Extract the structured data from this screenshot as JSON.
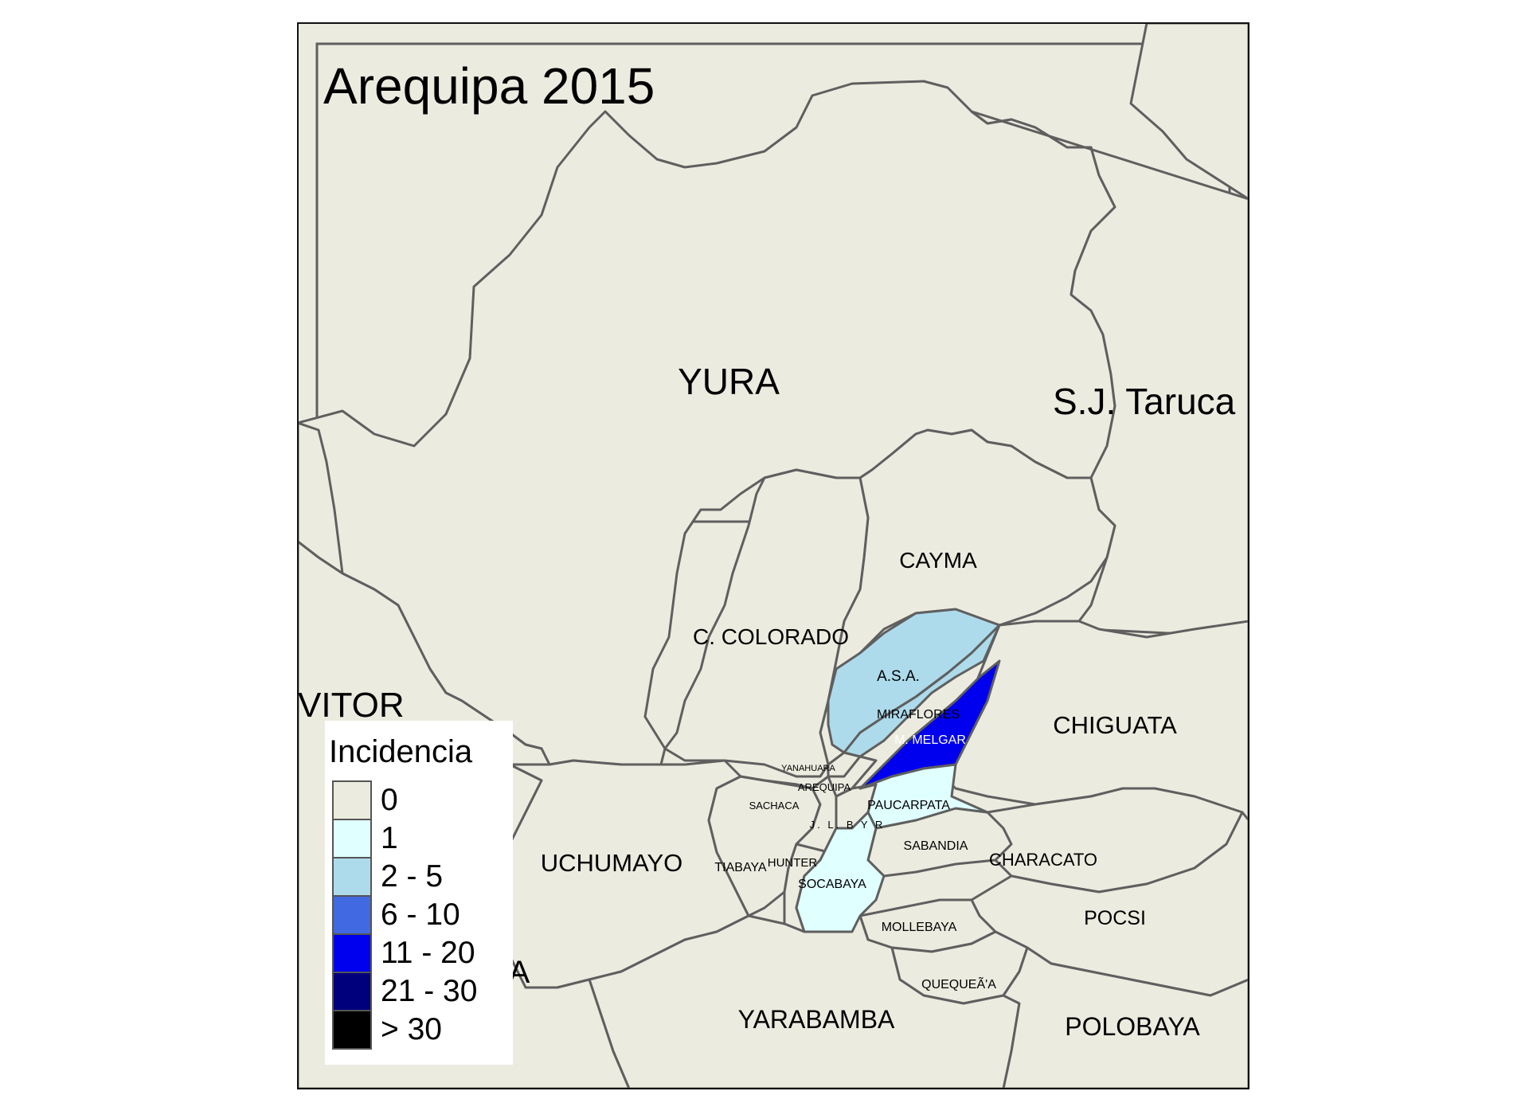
{
  "map": {
    "title": "Arequipa 2015",
    "background_color": "#ebebdf",
    "border_color": "#5f5f5f",
    "labels": {
      "yura": "YURA",
      "sj_tarucani": "S.J. Taruca",
      "cayma": "CAYMA",
      "cerro_colorado": "C. COLORADO",
      "vitor": "VITOR",
      "asa": "A.S.A.",
      "miraflores": "MIRAFLORES",
      "melgar": "M. MELGAR",
      "chiguata": "CHIGUATA",
      "yanahuara": "YANAHUARA",
      "arequipa": "AREQUIPA",
      "sachaca": "SACHACA",
      "paucarpata": "PAUCARPATA",
      "jlbyr": "J. L. B Y R",
      "sabandia": "SABANDIA",
      "characato": "CHARACATO",
      "uchumayo": "UCHUMAYO",
      "tiabaya": "TIABAYA",
      "hunter": "HUNTER",
      "socabaya": "SOCABAYA",
      "pocsi": "POCSI",
      "mollebaya": "MOLLEBAYA",
      "quequena": "QUEQUEÃ'A",
      "yarabamba": "YARABAMBA",
      "polobaya": "POLOBAYA",
      "la_joya_partial": "A"
    }
  },
  "legend": {
    "title": "Incidencia",
    "classes": [
      {
        "label": "0",
        "color": "#ebebdf"
      },
      {
        "label": "1",
        "color": "#e0ffff"
      },
      {
        "label": "2 - 5",
        "color": "#addbeb"
      },
      {
        "label": "6 - 10",
        "color": "#4169e1"
      },
      {
        "label": "11 - 20",
        "color": "#0000ef"
      },
      {
        "label": "21 - 30",
        "color": "#00007d"
      },
      {
        "label": "> 30",
        "color": "#000000"
      }
    ]
  },
  "districts": [
    {
      "name": "A.S.A.",
      "incidence_class": "2 - 5"
    },
    {
      "name": "MIRAFLORES",
      "incidence_class": "2 - 5"
    },
    {
      "name": "M. MELGAR",
      "incidence_class": "11 - 20"
    },
    {
      "name": "PAUCARPATA",
      "incidence_class": "1"
    },
    {
      "name": "SOCABAYA",
      "incidence_class": "1"
    }
  ]
}
